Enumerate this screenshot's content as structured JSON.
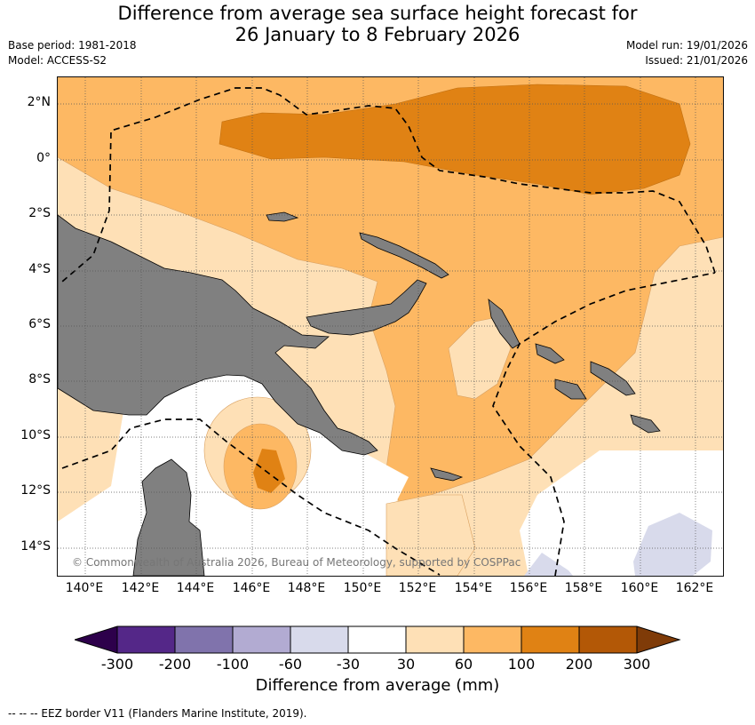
{
  "title": {
    "line1": "Difference from average sea surface height forecast for",
    "line2": "26 January to 8 February 2026"
  },
  "info_left": {
    "base_period": "Base period: 1981-2018",
    "model": "Model: ACCESS-S2"
  },
  "info_right": {
    "model_run": "Model run: 19/01/2026",
    "issued": "Issued: 21/01/2026"
  },
  "lat_labels": [
    "2°N",
    "0°",
    "2°S",
    "4°S",
    "6°S",
    "8°S",
    "10°S",
    "12°S",
    "14°S"
  ],
  "lon_labels": [
    "140°E",
    "142°E",
    "144°E",
    "146°E",
    "148°E",
    "150°E",
    "152°E",
    "154°E",
    "156°E",
    "158°E",
    "160°E",
    "162°E"
  ],
  "copyright": "© Commonwealth of Australia 2026, Bureau of Meteorology, supported by COSPPac",
  "colorbar": {
    "labels": [
      "-300",
      "-200",
      "-100",
      "-60",
      "-30",
      "30",
      "60",
      "100",
      "200",
      "300"
    ],
    "colors": [
      "#2d004b",
      "#542788",
      "#8073ac",
      "#b2abd2",
      "#d8daeb",
      "#ffffff",
      "#fee0b6",
      "#fdb863",
      "#e08214",
      "#b35806",
      "#7f3b08"
    ],
    "title": "Difference from average (mm)"
  },
  "legend": "--  --  -- EEZ border V11 (Flanders Marine Institute, 2019)."
}
